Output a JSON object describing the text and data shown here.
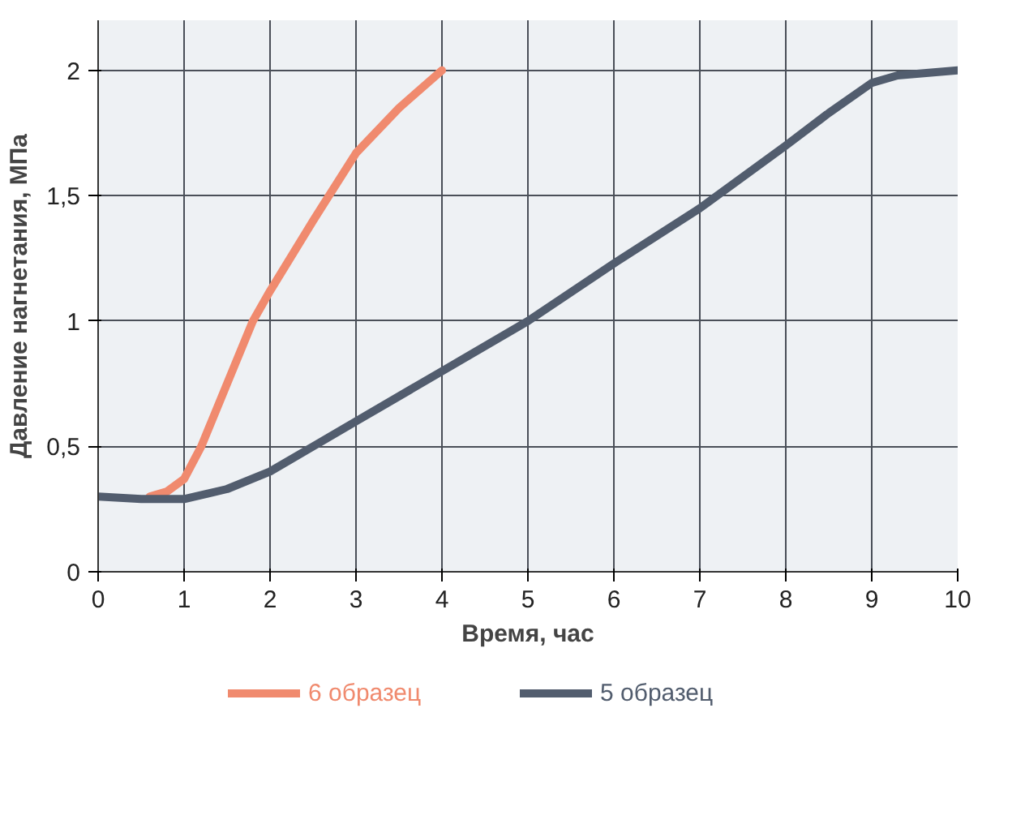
{
  "chart_data": {
    "type": "line",
    "xlabel": "Время, час",
    "ylabel": "Давление нагнетания, МПа",
    "xlim": [
      0,
      10
    ],
    "ylim": [
      0,
      2.2
    ],
    "xticks": [
      0,
      1,
      2,
      3,
      4,
      5,
      6,
      7,
      8,
      9,
      10
    ],
    "yticks": [
      0,
      {
        "value": 0.5,
        "label": "0,5"
      },
      1,
      {
        "value": 1.5,
        "label": "1,5"
      },
      2
    ],
    "grid": true,
    "legend": "bottom",
    "line_style": "solid",
    "series": [
      {
        "name": "6 образец",
        "color": "#f08a6e",
        "x": [
          0.6,
          0.8,
          1,
          1.2,
          1.5,
          1.8,
          2,
          2.5,
          3,
          3.5,
          4
        ],
        "values": [
          0.3,
          0.32,
          0.37,
          0.5,
          0.75,
          1.0,
          1.12,
          1.4,
          1.67,
          1.85,
          2.0
        ]
      },
      {
        "name": "5 образец",
        "color": "#525d6e",
        "x": [
          0,
          0.5,
          1,
          1.5,
          2,
          2.5,
          3,
          4,
          5,
          6,
          7,
          8,
          8.5,
          9,
          9.3,
          10
        ],
        "values": [
          0.3,
          0.29,
          0.29,
          0.33,
          0.4,
          0.5,
          0.6,
          0.8,
          1.0,
          1.23,
          1.45,
          1.7,
          1.83,
          1.95,
          1.98,
          2.0
        ]
      }
    ]
  }
}
